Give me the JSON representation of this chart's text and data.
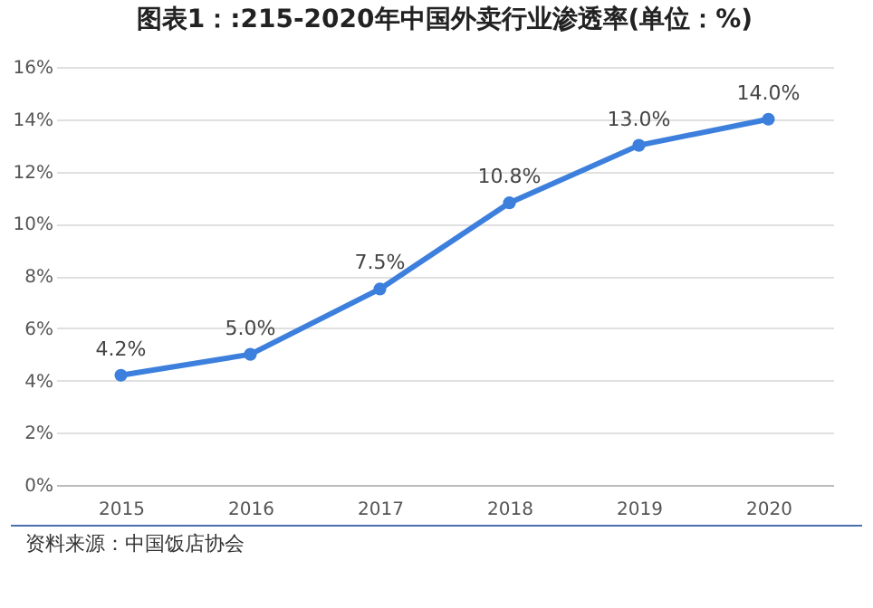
{
  "chart_data": {
    "type": "line",
    "title": "图表1：:215-2020年中国外卖行业渗透率(单位：%)",
    "categories": [
      "2015",
      "2016",
      "2017",
      "2018",
      "2019",
      "2020"
    ],
    "series": [
      {
        "color": "#3c7fdc",
        "values": [
          4.2,
          5.0,
          7.5,
          10.8,
          13.0,
          14.0
        ],
        "value_labels": [
          "4.2%",
          "5.0%",
          "7.5%",
          "10.8%",
          "13.0%",
          "14.0%"
        ]
      }
    ],
    "ylim": [
      0,
      16
    ],
    "yticks": [
      {
        "value": 0,
        "label": "0%"
      },
      {
        "value": 2,
        "label": "2%"
      },
      {
        "value": 4,
        "label": "4%"
      },
      {
        "value": 6,
        "label": "6%"
      },
      {
        "value": 8,
        "label": "8%"
      },
      {
        "value": 10,
        "label": "10%"
      },
      {
        "value": 12,
        "label": "12%"
      },
      {
        "value": 14,
        "label": "14%"
      },
      {
        "value": 16,
        "label": "16%"
      }
    ],
    "grid": "y",
    "marker": "circle",
    "line_style": "solid",
    "annotations": [
      "资料来源：中国饭店协会"
    ]
  }
}
